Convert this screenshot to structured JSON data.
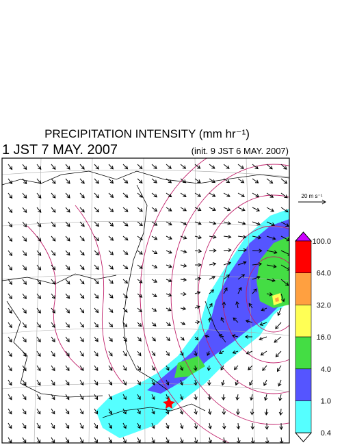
{
  "header": {
    "title": "PRECIPITATION INTENSITY (mm hr⁻¹)",
    "valid_time": "1 JST 7 MAY. 2007",
    "init_time": "(init. 9 JST 6 MAY. 2007)"
  },
  "vector_key": "20 m s⁻¹",
  "colorbar": {
    "labels": [
      "100.0",
      "64.0",
      "32.0",
      "16.0",
      "4.0",
      "1.0",
      "0.4"
    ],
    "colors": [
      "#ff0000",
      "#ffa040",
      "#ffff55",
      "#44dd44",
      "#5555ff",
      "#55ffff"
    ],
    "over_color": "#cc00ff",
    "under_color": "#ffffff"
  }
}
